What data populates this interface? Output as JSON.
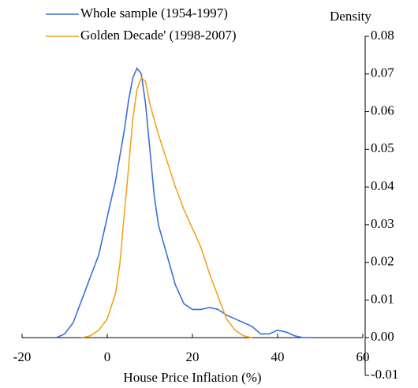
{
  "chart_data": {
    "type": "line",
    "ylabel": "Density",
    "xlabel": "House Price Inflation (%)",
    "xlim": [
      -20,
      60
    ],
    "xticks": [
      -20,
      0,
      20,
      40,
      60
    ],
    "ylim": [
      -0.01,
      0.08
    ],
    "yticks": [
      -0.01,
      {
        "value": 0,
        "label": "0.00"
      },
      0.01,
      0.02,
      0.03,
      0.04,
      0.05,
      0.06,
      0.07,
      0.08
    ],
    "series": [
      {
        "name": "Whole sample (1954-1997)",
        "color": "#3a6fdc",
        "x": [
          -12,
          -10,
          -8,
          -6,
          -4,
          -2,
          0,
          2,
          4,
          5,
          6,
          7,
          8,
          9,
          10,
          11,
          12,
          14,
          16,
          18,
          20,
          22,
          24,
          26,
          28,
          30,
          32,
          34,
          36,
          38,
          40,
          42,
          44,
          46,
          48
        ],
        "values": [
          0,
          0.001,
          0.004,
          0.01,
          0.016,
          0.022,
          0.032,
          0.042,
          0.055,
          0.063,
          0.069,
          0.0715,
          0.07,
          0.062,
          0.05,
          0.038,
          0.03,
          0.022,
          0.014,
          0.009,
          0.0075,
          0.0075,
          0.008,
          0.0075,
          0.006,
          0.005,
          0.004,
          0.003,
          0.001,
          0.001,
          0.002,
          0.0015,
          0.0005,
          0,
          0
        ]
      },
      {
        "name": "Golden Decade' (1998-2007)",
        "color": "#f5a31e",
        "x": [
          -6,
          -4,
          -2,
          0,
          2,
          3,
          4,
          5,
          6,
          7,
          8,
          9,
          10,
          12,
          14,
          16,
          18,
          20,
          22,
          24,
          26,
          28,
          30,
          32,
          34
        ],
        "values": [
          0,
          0.0005,
          0.002,
          0.005,
          0.012,
          0.02,
          0.033,
          0.045,
          0.058,
          0.066,
          0.069,
          0.068,
          0.062,
          0.054,
          0.047,
          0.04,
          0.034,
          0.029,
          0.024,
          0.017,
          0.011,
          0.005,
          0.002,
          0.0005,
          0
        ]
      }
    ]
  }
}
